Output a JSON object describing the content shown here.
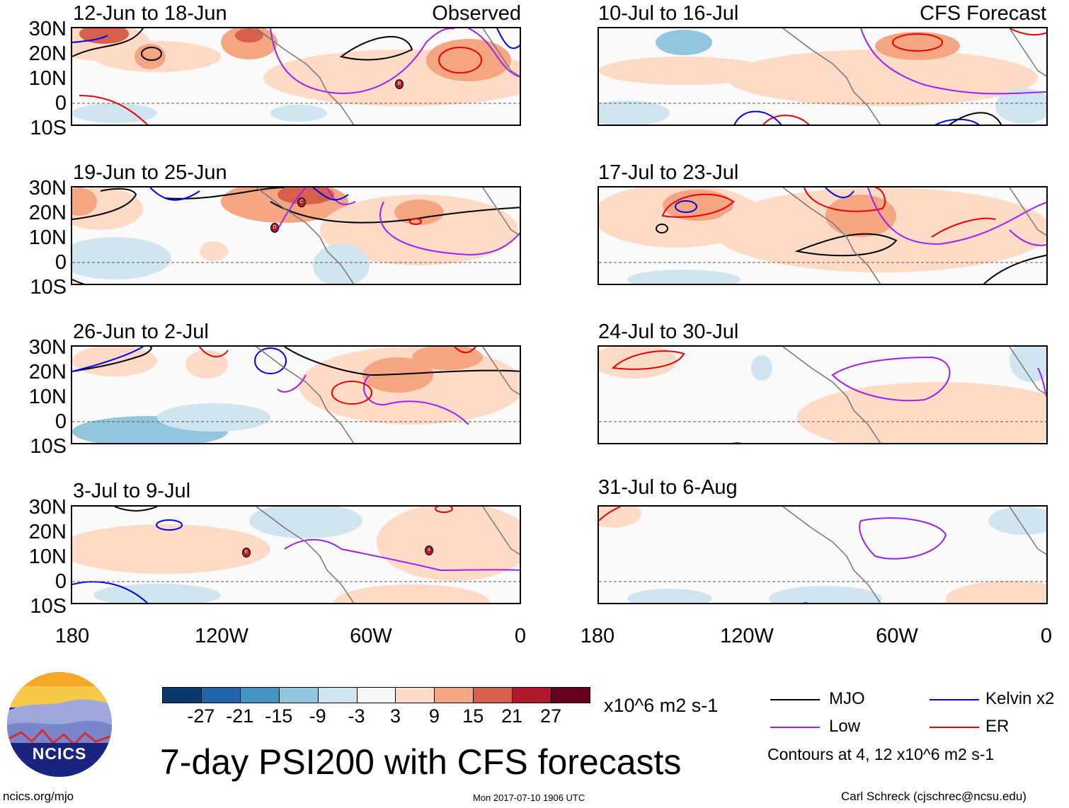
{
  "panels": [
    {
      "title": "12-Jun to 18-Jun",
      "tag": "Observed",
      "storms": [
        "B"
      ]
    },
    {
      "title": "19-Jun to 25-Jun",
      "tag": "",
      "storms": [
        "C",
        "D"
      ]
    },
    {
      "title": "26-Jun to 2-Jul",
      "tag": "",
      "storms": []
    },
    {
      "title": "3-Jul to 9-Jul",
      "tag": "",
      "storms": [
        "E",
        "4"
      ]
    },
    {
      "title": "10-Jul to 16-Jul",
      "tag": "CFS Forecast",
      "storms": []
    },
    {
      "title": "17-Jul to 23-Jul",
      "tag": "",
      "storms": []
    },
    {
      "title": "24-Jul to 30-Jul",
      "tag": "",
      "storms": []
    },
    {
      "title": "31-Jul to 6-Aug",
      "tag": "",
      "storms": []
    }
  ],
  "lat_labels": [
    "30N",
    "20N",
    "10N",
    "0",
    "10S"
  ],
  "lon_labels": [
    "180",
    "120W",
    "60W",
    "0"
  ],
  "colorbar": {
    "ticks": [
      "-27",
      "-21",
      "-15",
      "-9",
      "-3",
      "3",
      "9",
      "15",
      "21",
      "27"
    ],
    "colors": [
      "#0a3a6b",
      "#2166ac",
      "#4393c3",
      "#92c5de",
      "#d1e5f0",
      "#f7f7f7",
      "#fddbc7",
      "#f4a582",
      "#d6604d",
      "#b2182b",
      "#67001f"
    ],
    "units": "x10^6 m2 s-1"
  },
  "legend": {
    "items": [
      {
        "label": "MJO",
        "color": "#000000"
      },
      {
        "label": "Kelvin x2",
        "color": "#0000ee"
      },
      {
        "label": "Low",
        "color": "#a020f0"
      },
      {
        "label": "ER",
        "color": "#ee0000"
      }
    ],
    "note": "Contours at 4, 12 x10^6 m2 s-1"
  },
  "logo": {
    "text": "NCICS"
  },
  "main_title": "7-day PSI200 with CFS forecasts",
  "footer": {
    "url": "ncics.org/mjo",
    "timestamp": "Mon 2017-07-10 1906 UTC",
    "author": "Carl Schreck (cjschrec@ncsu.edu)"
  }
}
